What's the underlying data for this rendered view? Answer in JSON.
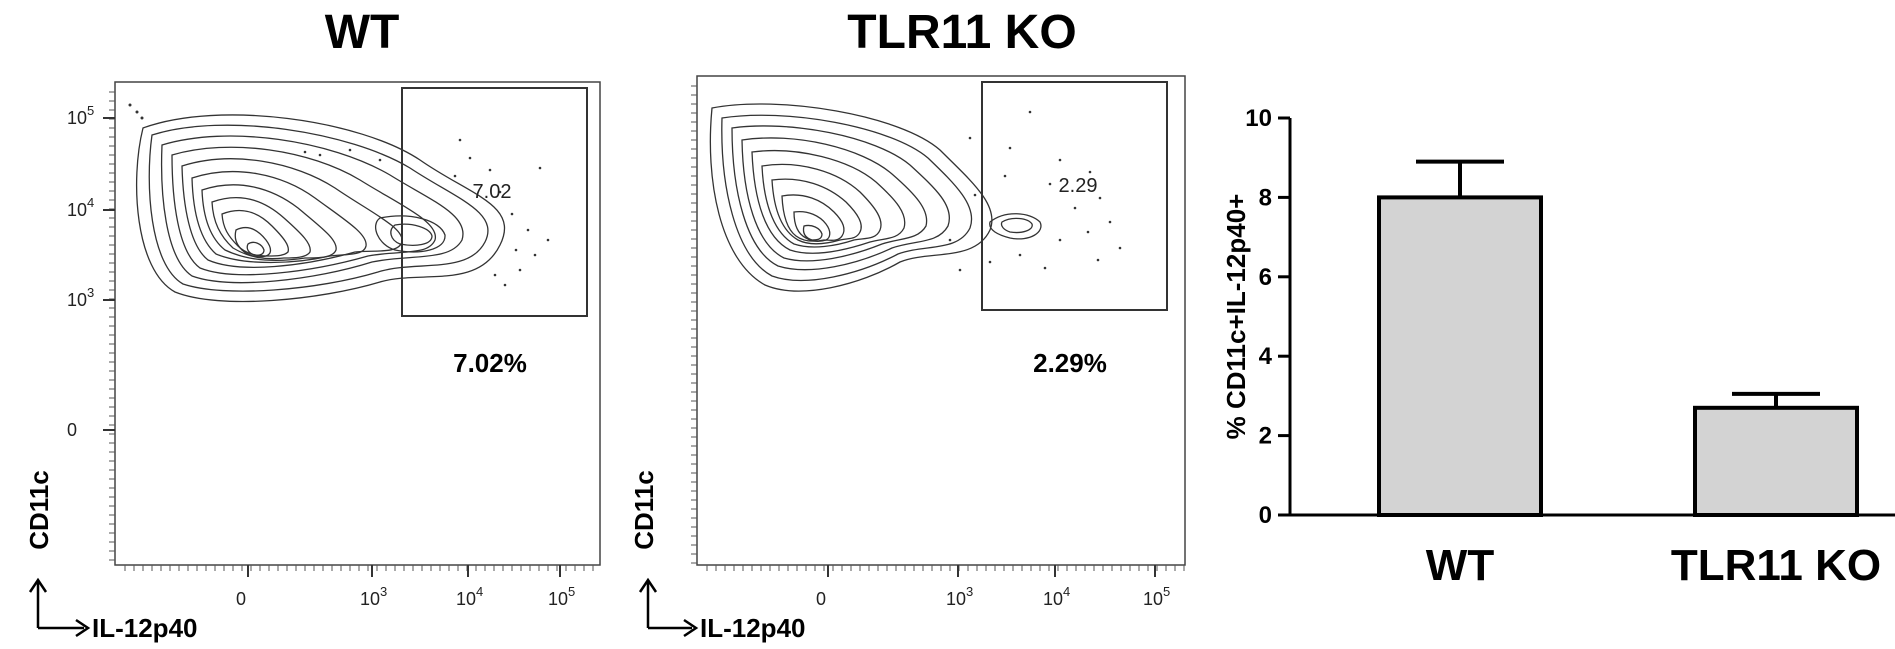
{
  "panels": [
    {
      "title": "WT",
      "gate_value": "7.02",
      "percent_label": "7.02%",
      "y_axis_label": "CD11c",
      "x_axis_label": "IL-12p40",
      "y_ticks": [
        {
          "base": "10",
          "exp": "5"
        },
        {
          "base": "10",
          "exp": "4"
        },
        {
          "base": "10",
          "exp": "3"
        },
        {
          "base": "0",
          "exp": ""
        }
      ],
      "x_ticks": [
        {
          "base": "0",
          "exp": ""
        },
        {
          "base": "10",
          "exp": "3"
        },
        {
          "base": "10",
          "exp": "4"
        },
        {
          "base": "10",
          "exp": "5"
        }
      ]
    },
    {
      "title": "TLR11 KO",
      "gate_value": "2.29",
      "percent_label": "2.29%",
      "y_axis_label": "CD11c",
      "x_axis_label": "IL-12p40",
      "y_ticks": [],
      "x_ticks": [
        {
          "base": "0",
          "exp": ""
        },
        {
          "base": "10",
          "exp": "3"
        },
        {
          "base": "10",
          "exp": "4"
        },
        {
          "base": "10",
          "exp": "5"
        }
      ]
    }
  ],
  "chart_data": {
    "type": "bar",
    "categories": [
      "WT",
      "TLR11 KO"
    ],
    "values": [
      8.0,
      2.7
    ],
    "errors": [
      0.9,
      0.35
    ],
    "ylabel": "% CD11c+IL-12p40+",
    "ylim": [
      0,
      10
    ],
    "yticks": [
      0,
      2,
      4,
      6,
      8,
      10
    ],
    "bar_color": "#d3d3d3",
    "grid": false
  }
}
